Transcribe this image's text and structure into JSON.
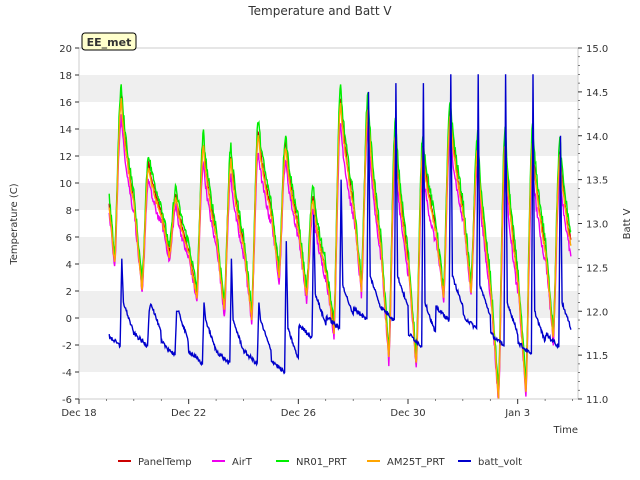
{
  "chart_data": {
    "type": "line",
    "title": "Temperature and Batt V",
    "station_label": "EE_met",
    "xlabel": "Time",
    "ylabel_left": "Temperature (C)",
    "ylabel_right": "Batt V",
    "ylim_left": [
      -6,
      20
    ],
    "ylim_right": [
      11.0,
      15.0
    ],
    "x_range_days": [
      0,
      18.2
    ],
    "yticks_left": [
      -6,
      -4,
      -2,
      0,
      2,
      4,
      6,
      8,
      10,
      12,
      14,
      16,
      18,
      20
    ],
    "yticks_right": [
      11.0,
      11.5,
      12.0,
      12.5,
      13.0,
      13.5,
      14.0,
      14.5,
      15.0
    ],
    "xticks": [
      {
        "label": "Dec 18",
        "x": 0
      },
      {
        "label": "Dec 22",
        "x": 4
      },
      {
        "label": "Dec 26",
        "x": 8
      },
      {
        "label": "Dec 30",
        "x": 12
      },
      {
        "label": "Jan 3",
        "x": 16
      }
    ],
    "grid": "horizontal bands",
    "legend_position": "bottom",
    "daily_min_temp": [
      2.5,
      4.5,
      2.5,
      5.0,
      2.0,
      1.0,
      0.5,
      3.5,
      2.0,
      -0.5,
      2.5,
      -2.5,
      -3.0,
      2.0,
      2.5,
      -5.5,
      -5.0,
      -1.0
    ],
    "daily_max_temp": [
      18.5,
      17.0,
      12.0,
      9.5,
      13.5,
      12.5,
      14.5,
      13.5,
      9.5,
      17.0,
      16.5,
      14.5,
      13.5,
      16.0,
      13.5,
      14.0,
      14.0,
      13.0
    ],
    "daily_batt_max": [
      13.0,
      12.6,
      12.0,
      12.0,
      12.1,
      12.6,
      12.1,
      12.8,
      13.1,
      13.5,
      14.5,
      14.6,
      14.6,
      14.7,
      14.7,
      14.7,
      14.7,
      14.0
    ],
    "daily_batt_min": [
      11.6,
      11.6,
      11.6,
      11.5,
      11.4,
      11.4,
      11.4,
      11.3,
      11.7,
      11.8,
      11.9,
      11.9,
      11.6,
      11.9,
      11.8,
      11.6,
      11.5,
      11.6
    ],
    "series": [
      {
        "name": "PanelTemp",
        "color": "#cc0000",
        "axis": "left"
      },
      {
        "name": "AirT",
        "color": "#ee00ee",
        "axis": "left"
      },
      {
        "name": "NR01_PRT",
        "color": "#00ee00",
        "axis": "left"
      },
      {
        "name": "AM25T_PRT",
        "color": "#ffa500",
        "axis": "left"
      },
      {
        "name": "batt_volt",
        "color": "#0000cc",
        "axis": "right"
      }
    ]
  }
}
